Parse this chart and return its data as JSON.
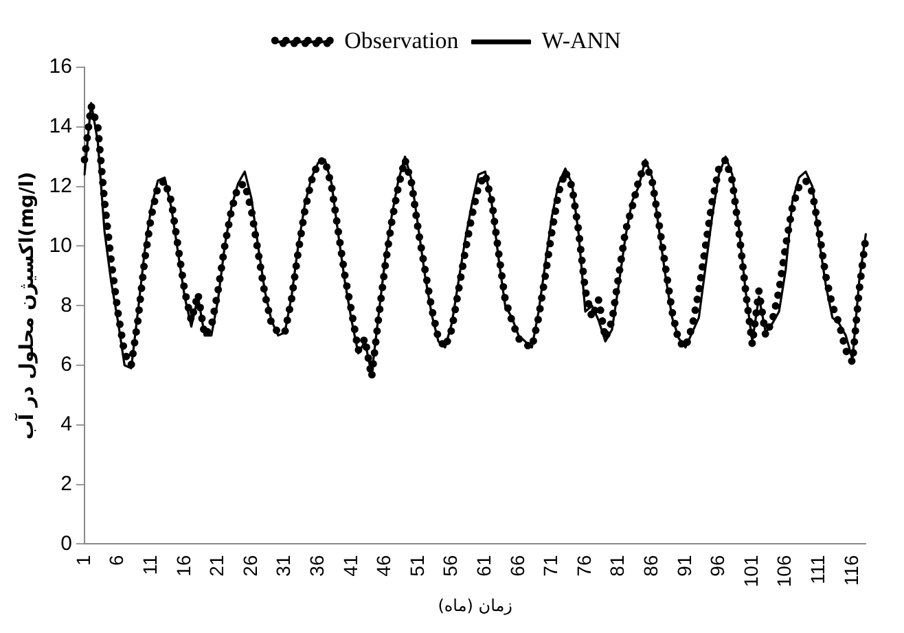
{
  "chart_data": {
    "type": "line",
    "xlabel": "زمان (ماه)",
    "ylabel": "اکسیژن محلول در آب(mg/l)",
    "categories": [
      "1",
      null,
      null,
      null,
      null,
      "6",
      null,
      null,
      null,
      null,
      "11",
      null,
      null,
      null,
      null,
      "16",
      null,
      null,
      null,
      null,
      "21",
      null,
      null,
      null,
      null,
      "26",
      null,
      null,
      null,
      null,
      "31",
      null,
      null,
      null,
      null,
      "36",
      null,
      null,
      null,
      null,
      "41",
      null,
      null,
      null,
      null,
      "46",
      null,
      null,
      null,
      null,
      "51",
      null,
      null,
      null,
      null,
      "56",
      null,
      null,
      null,
      null,
      "61",
      null,
      null,
      null,
      null,
      "66",
      null,
      null,
      null,
      null,
      "71",
      null,
      null,
      null,
      null,
      "76",
      null,
      null,
      null,
      null,
      "81",
      null,
      null,
      null,
      null,
      "86",
      null,
      null,
      null,
      null,
      "91",
      null,
      null,
      null,
      null,
      "96",
      null,
      null,
      null,
      null,
      "101",
      null,
      null,
      null,
      null,
      "106",
      null,
      null,
      null,
      null,
      "111",
      null,
      null,
      null,
      null,
      "116",
      null,
      null
    ],
    "ylim": [
      0,
      16
    ],
    "yticks": [
      0,
      2,
      4,
      6,
      8,
      10,
      12,
      14,
      16
    ],
    "grid": false,
    "legend": "top",
    "marker": "none",
    "series": [
      {
        "name": "Observation",
        "color": "#000000",
        "line_style": "dotted",
        "values": [
          12.9,
          14.7,
          14.0,
          11.5,
          9.5,
          7.8,
          6.4,
          6.0,
          7.5,
          9.5,
          11.0,
          12.0,
          12.2,
          11.5,
          10.0,
          8.5,
          7.5,
          8.4,
          7.0,
          7.3,
          8.5,
          10.0,
          11.2,
          12.0,
          12.1,
          11.2,
          9.8,
          8.4,
          7.4,
          7.1,
          7.1,
          8.2,
          9.8,
          11.2,
          12.2,
          12.8,
          12.9,
          12.0,
          10.5,
          9.0,
          7.8,
          6.5,
          6.9,
          5.6,
          7.5,
          9.3,
          10.8,
          12.0,
          12.9,
          12.1,
          10.5,
          9.2,
          7.9,
          6.9,
          6.6,
          7.2,
          8.5,
          9.8,
          11.0,
          12.0,
          12.4,
          11.5,
          9.8,
          8.2,
          7.5,
          6.9,
          6.7,
          6.6,
          7.6,
          9.0,
          10.5,
          11.8,
          12.5,
          12.0,
          10.5,
          8.5,
          7.6,
          8.2,
          6.9,
          7.5,
          9.0,
          10.5,
          11.3,
          12.2,
          12.8,
          12.2,
          10.8,
          9.3,
          7.8,
          6.8,
          6.6,
          7.3,
          8.5,
          10.0,
          11.5,
          12.6,
          12.9,
          12.2,
          10.5,
          8.5,
          6.7,
          8.5,
          7.0,
          7.5,
          8.5,
          10.0,
          11.3,
          12.0,
          12.2,
          11.8,
          10.5,
          9.0,
          8.0,
          7.4,
          6.5,
          6.1,
          8.5,
          10.3
        ]
      },
      {
        "name": "W-ANN",
        "color": "#000000",
        "line_style": "solid",
        "values": [
          12.4,
          14.8,
          13.5,
          10.5,
          8.8,
          7.5,
          6.0,
          5.9,
          7.8,
          9.8,
          11.3,
          12.2,
          12.3,
          11.3,
          9.8,
          8.3,
          7.3,
          8.3,
          7.0,
          7.0,
          8.2,
          10.0,
          11.3,
          12.1,
          12.5,
          11.6,
          10.0,
          8.5,
          7.5,
          7.0,
          7.1,
          8.3,
          10.0,
          11.4,
          12.3,
          12.8,
          12.9,
          12.1,
          10.4,
          8.8,
          7.5,
          6.4,
          6.8,
          5.7,
          7.6,
          9.5,
          11.0,
          12.2,
          13.0,
          12.2,
          10.6,
          9.0,
          7.7,
          6.8,
          6.6,
          7.4,
          8.8,
          10.2,
          11.4,
          12.4,
          12.5,
          11.4,
          9.6,
          8.0,
          7.6,
          7.0,
          6.8,
          6.6,
          7.8,
          9.4,
          11.0,
          12.1,
          12.6,
          12.1,
          10.4,
          7.8,
          8.0,
          7.5,
          6.8,
          7.2,
          8.7,
          10.3,
          11.5,
          12.0,
          12.9,
          12.3,
          10.6,
          9.0,
          7.6,
          6.9,
          6.6,
          7.1,
          7.6,
          9.3,
          11.0,
          12.4,
          13.0,
          12.4,
          10.6,
          8.5,
          6.8,
          8.3,
          7.1,
          7.4,
          7.8,
          9.2,
          11.5,
          12.3,
          12.5,
          12.0,
          10.2,
          8.7,
          7.6,
          7.4,
          7.0,
          6.2,
          8.8,
          10.4
        ]
      }
    ]
  }
}
